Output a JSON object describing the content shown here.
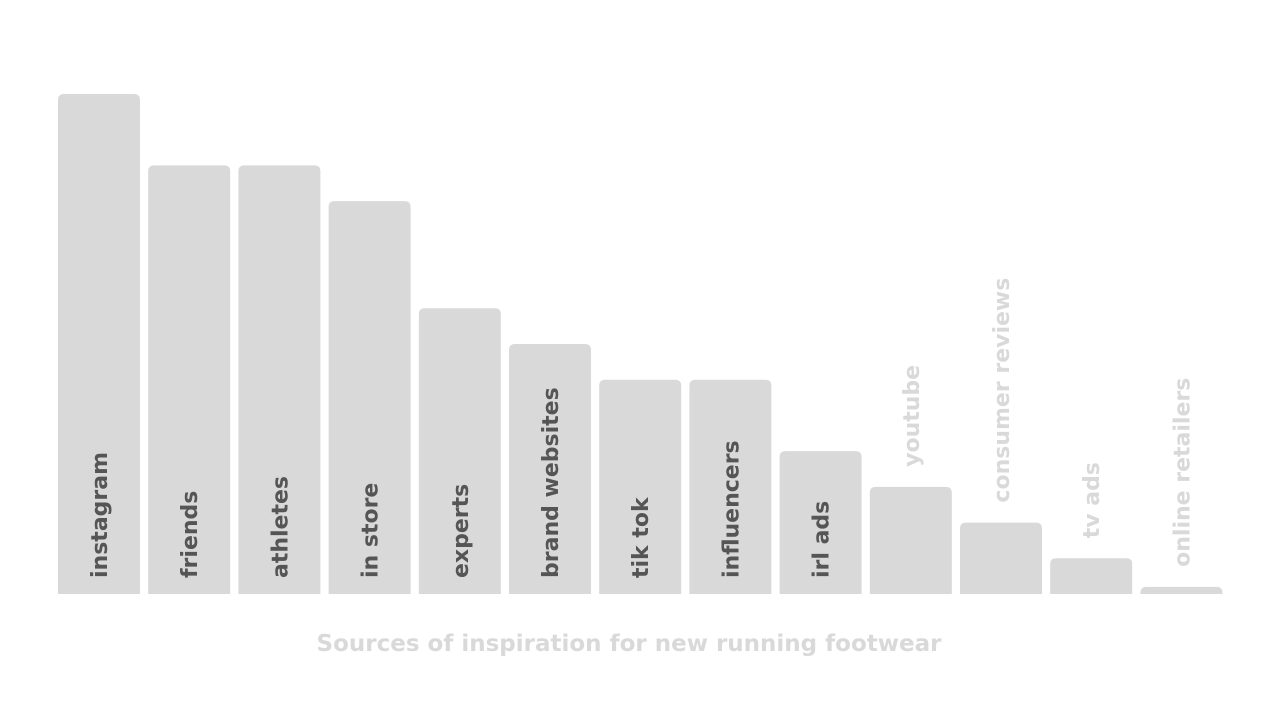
{
  "chart_data": {
    "type": "bar",
    "title": "Sources of inspiration for new running footwear",
    "xlabel": "",
    "ylabel": "",
    "categories": [
      "instagram",
      "friends",
      "athletes",
      "in store",
      "experts",
      "brand websites",
      "tik tok",
      "influencers",
      "irl ads",
      "youtube",
      "consumer reviews",
      "tv ads",
      "online retailers"
    ],
    "values": [
      14,
      12,
      12,
      11,
      8,
      7,
      6,
      6,
      4,
      3,
      2,
      1,
      0.2
    ],
    "ylim": [
      0,
      14
    ],
    "grid": false,
    "legend": "none",
    "colors": {
      "bar": "#d9d9d9",
      "label_inside": "#555555",
      "label_outside": "#d9d9d9",
      "title": "#d9d9d9",
      "background": "#ffffff"
    }
  }
}
